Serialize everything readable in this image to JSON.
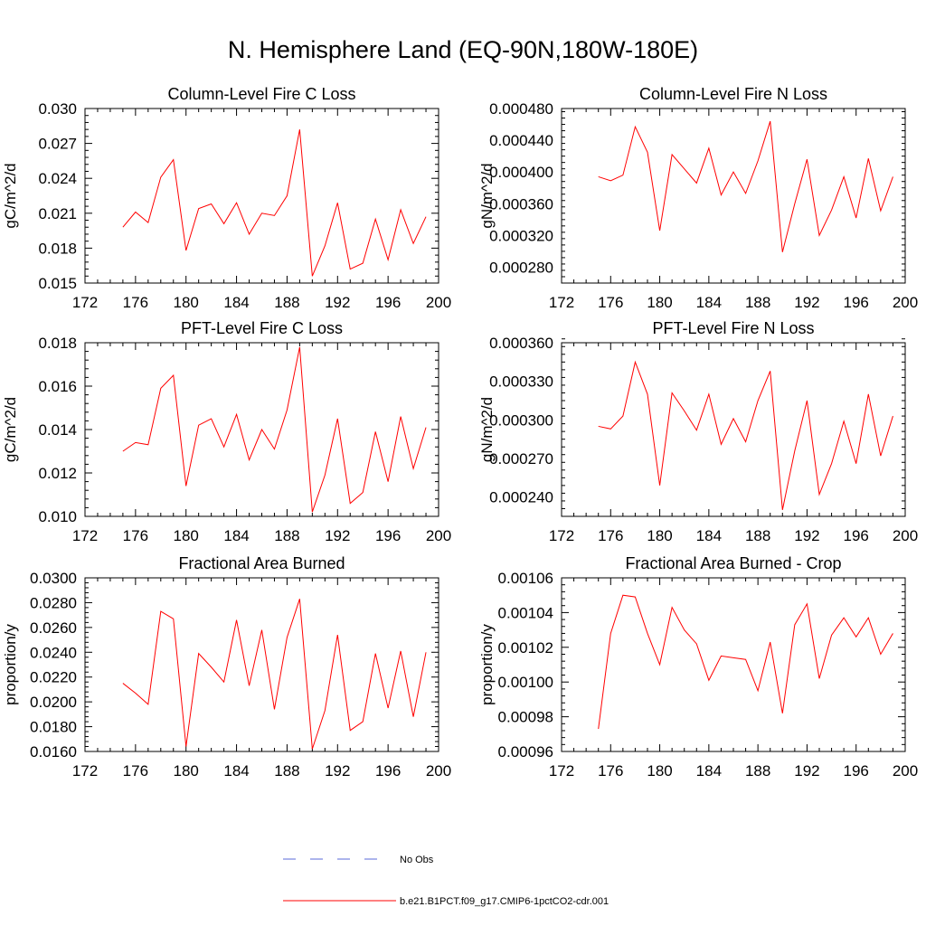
{
  "page_title": "N. Hemisphere Land (EQ-90N,180W-180E)",
  "legend": {
    "items": [
      {
        "label": "No Obs",
        "color": "#5a6ad8",
        "dash": true
      },
      {
        "label": "b.e21.B1PCT.f09_g17.CMIP6-1pctCO2-cdr.001",
        "color": "#ff0000",
        "dash": false
      }
    ]
  },
  "chart_data": [
    {
      "type": "line",
      "title": "Column-Level Fire C Loss",
      "ylabel": "gC/m^2/d",
      "xlim": [
        172,
        200
      ],
      "xticks": [
        "172",
        "176",
        "180",
        "184",
        "188",
        "192",
        "196",
        "200"
      ],
      "ylim": [
        0.015,
        0.03
      ],
      "yticks": [
        "0.015",
        "0.018",
        "0.021",
        "0.024",
        "0.027",
        "0.030"
      ],
      "x": [
        175,
        176,
        177,
        178,
        179,
        180,
        181,
        182,
        183,
        184,
        185,
        186,
        187,
        188,
        189,
        190,
        191,
        192,
        193,
        194,
        195,
        196,
        197,
        198,
        199
      ],
      "series": [
        {
          "name": "b.e21.B1PCT.f09_g17.CMIP6-1pctCO2-cdr.001",
          "color": "#ff0000",
          "values": [
            0.0198,
            0.0211,
            0.0202,
            0.0241,
            0.0256,
            0.0178,
            0.0214,
            0.0218,
            0.0201,
            0.0219,
            0.0192,
            0.021,
            0.0208,
            0.0225,
            0.0282,
            0.0156,
            0.0182,
            0.0219,
            0.0162,
            0.0167,
            0.0205,
            0.017,
            0.0213,
            0.0184,
            0.0207
          ]
        }
      ]
    },
    {
      "type": "line",
      "title": "Column-Level Fire N Loss",
      "ylabel": "gN/m^2/d",
      "xlim": [
        172,
        200
      ],
      "xticks": [
        "172",
        "176",
        "180",
        "184",
        "188",
        "192",
        "196",
        "200"
      ],
      "ylim": [
        0.00026,
        0.00048
      ],
      "yticks": [
        "0.000280",
        "0.000320",
        "0.000360",
        "0.000400",
        "0.000440",
        "0.000480"
      ],
      "x": [
        175,
        176,
        177,
        178,
        179,
        180,
        181,
        182,
        183,
        184,
        185,
        186,
        187,
        188,
        189,
        190,
        191,
        192,
        193,
        194,
        195,
        196,
        197,
        198,
        199
      ],
      "series": [
        {
          "name": "b.e21.B1PCT.f09_g17.CMIP6-1pctCO2-cdr.001",
          "color": "#ff0000",
          "values": [
            0.000394,
            0.000389,
            0.000396,
            0.000457,
            0.000425,
            0.000326,
            0.000422,
            0.000404,
            0.000386,
            0.00043,
            0.000371,
            0.0004,
            0.000373,
            0.000414,
            0.000464,
            0.000299,
            0.00036,
            0.000416,
            0.00032,
            0.000352,
            0.000394,
            0.000342,
            0.000417,
            0.000351,
            0.000394
          ]
        }
      ]
    },
    {
      "type": "line",
      "title": "PFT-Level Fire C Loss",
      "ylabel": "gC/m^2/d",
      "xlim": [
        172,
        200
      ],
      "xticks": [
        "172",
        "176",
        "180",
        "184",
        "188",
        "192",
        "196",
        "200"
      ],
      "ylim": [
        0.01,
        0.018
      ],
      "yticks": [
        "0.010",
        "0.012",
        "0.014",
        "0.016",
        "0.018"
      ],
      "x": [
        175,
        176,
        177,
        178,
        179,
        180,
        181,
        182,
        183,
        184,
        185,
        186,
        187,
        188,
        189,
        190,
        191,
        192,
        193,
        194,
        195,
        196,
        197,
        198,
        199
      ],
      "series": [
        {
          "name": "b.e21.B1PCT.f09_g17.CMIP6-1pctCO2-cdr.001",
          "color": "#ff0000",
          "values": [
            0.013,
            0.0134,
            0.0133,
            0.0159,
            0.0165,
            0.0114,
            0.0142,
            0.0145,
            0.0132,
            0.0147,
            0.0126,
            0.014,
            0.0131,
            0.0149,
            0.0178,
            0.0102,
            0.0119,
            0.0145,
            0.0106,
            0.0111,
            0.0139,
            0.0116,
            0.0146,
            0.0122,
            0.0141
          ]
        }
      ]
    },
    {
      "type": "line",
      "title": "PFT-Level Fire N Loss",
      "ylabel": "gN/m^2/d",
      "xlim": [
        172,
        200
      ],
      "xticks": [
        "172",
        "176",
        "180",
        "184",
        "188",
        "192",
        "196",
        "200"
      ],
      "ylim": [
        0.000225,
        0.00036
      ],
      "yticks": [
        "0.000240",
        "0.000270",
        "0.000300",
        "0.000330",
        "0.000360"
      ],
      "x": [
        175,
        176,
        177,
        178,
        179,
        180,
        181,
        182,
        183,
        184,
        185,
        186,
        187,
        188,
        189,
        190,
        191,
        192,
        193,
        194,
        195,
        196,
        197,
        198,
        199
      ],
      "series": [
        {
          "name": "b.e21.B1PCT.f09_g17.CMIP6-1pctCO2-cdr.001",
          "color": "#ff0000",
          "values": [
            0.000295,
            0.000293,
            0.000303,
            0.000345,
            0.00032,
            0.000249,
            0.000321,
            0.000307,
            0.000292,
            0.00032,
            0.000281,
            0.000301,
            0.000283,
            0.000315,
            0.000338,
            0.00023,
            0.000276,
            0.000315,
            0.000242,
            0.000266,
            0.000299,
            0.000266,
            0.00032,
            0.000272,
            0.000303
          ]
        }
      ]
    },
    {
      "type": "line",
      "title": "Fractional Area Burned",
      "ylabel": "proportion/y",
      "xlim": [
        172,
        200
      ],
      "xticks": [
        "172",
        "176",
        "180",
        "184",
        "188",
        "192",
        "196",
        "200"
      ],
      "ylim": [
        0.016,
        0.03
      ],
      "yticks": [
        "0.0160",
        "0.0180",
        "0.0200",
        "0.0220",
        "0.0240",
        "0.0260",
        "0.0280",
        "0.0300"
      ],
      "x": [
        175,
        176,
        177,
        178,
        179,
        180,
        181,
        182,
        183,
        184,
        185,
        186,
        187,
        188,
        189,
        190,
        191,
        192,
        193,
        194,
        195,
        196,
        197,
        198,
        199
      ],
      "series": [
        {
          "name": "b.e21.B1PCT.f09_g17.CMIP6-1pctCO2-cdr.001",
          "color": "#ff0000",
          "values": [
            0.0215,
            0.0207,
            0.0198,
            0.0273,
            0.0267,
            0.0164,
            0.0239,
            0.0228,
            0.0216,
            0.0266,
            0.0213,
            0.0258,
            0.0194,
            0.0252,
            0.0283,
            0.0162,
            0.0193,
            0.0254,
            0.0177,
            0.0184,
            0.0239,
            0.0195,
            0.0241,
            0.0188,
            0.024
          ]
        }
      ]
    },
    {
      "type": "line",
      "title": "Fractional Area Burned - Crop",
      "ylabel": "proportion/y",
      "xlim": [
        172,
        200
      ],
      "xticks": [
        "172",
        "176",
        "180",
        "184",
        "188",
        "192",
        "196",
        "200"
      ],
      "ylim": [
        0.00096,
        0.00106
      ],
      "yticks": [
        "0.00096",
        "0.00098",
        "0.00100",
        "0.00102",
        "0.00104",
        "0.00106"
      ],
      "x": [
        175,
        176,
        177,
        178,
        179,
        180,
        181,
        182,
        183,
        184,
        185,
        186,
        187,
        188,
        189,
        190,
        191,
        192,
        193,
        194,
        195,
        196,
        197,
        198,
        199
      ],
      "series": [
        {
          "name": "b.e21.B1PCT.f09_g17.CMIP6-1pctCO2-cdr.001",
          "color": "#ff0000",
          "values": [
            0.000973,
            0.001028,
            0.00105,
            0.001049,
            0.001028,
            0.00101,
            0.001043,
            0.00103,
            0.001022,
            0.001001,
            0.001015,
            0.001014,
            0.001013,
            0.000995,
            0.001023,
            0.000982,
            0.001033,
            0.001045,
            0.001002,
            0.001027,
            0.001037,
            0.001026,
            0.001037,
            0.001016,
            0.001028
          ]
        }
      ]
    }
  ]
}
